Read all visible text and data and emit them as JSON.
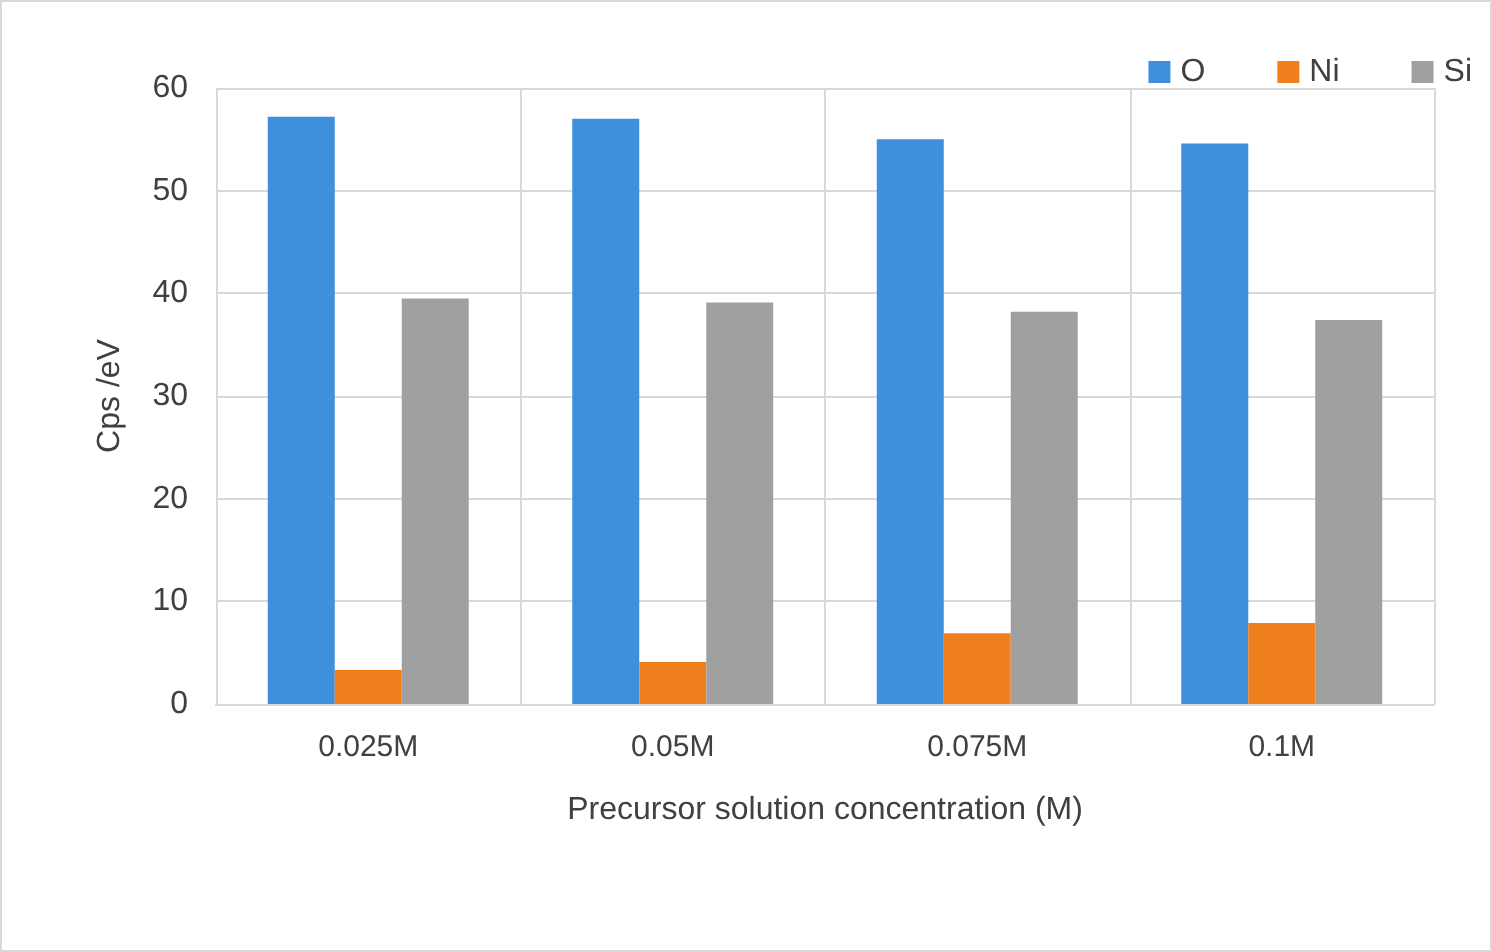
{
  "chart_data": {
    "type": "bar",
    "xlabel": "Precursor solution concentration (M)",
    "ylabel": "Cps /eV",
    "categories": [
      "0.025M",
      "0.05M",
      "0.075M",
      "0.1M"
    ],
    "series": [
      {
        "name": "O",
        "color": "#3e8fdc",
        "values": [
          57.2,
          57,
          55,
          54.6
        ]
      },
      {
        "name": "Ni",
        "color": "#f07f1e",
        "values": [
          3.3,
          4.1,
          6.9,
          7.9
        ]
      },
      {
        "name": "Si",
        "color": "#a0a0a0",
        "values": [
          39.5,
          39.1,
          38.2,
          37.4
        ]
      }
    ],
    "ylim": [
      0,
      60
    ],
    "yticks": [
      0,
      10,
      20,
      30,
      40,
      50,
      60
    ],
    "grid": true,
    "legend": "top right"
  }
}
